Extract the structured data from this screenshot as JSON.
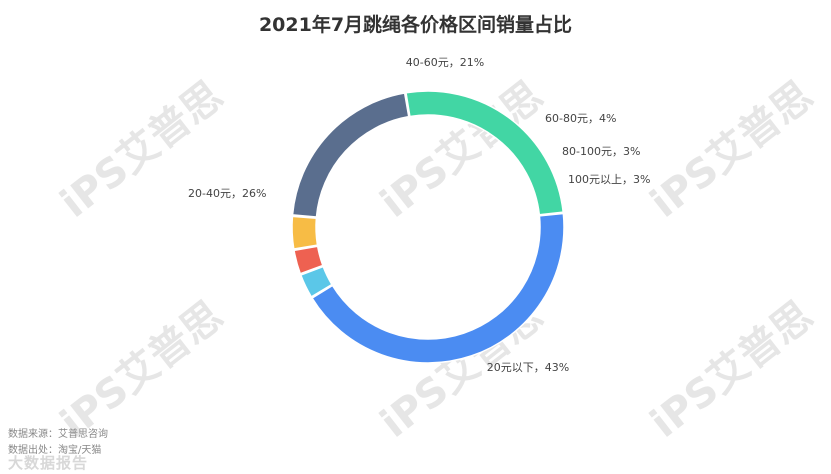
{
  "chart_data": {
    "type": "pie",
    "variant": "donut",
    "title": "2021年7月跳绳各价格区间销量占比",
    "slices": [
      {
        "label": "20元以下",
        "value": 43,
        "display": "20元以下，43%",
        "color": "#4b8cf2"
      },
      {
        "label": "100元以上",
        "value": 3,
        "display": "100元以上，3%",
        "color": "#5bc7e8"
      },
      {
        "label": "80-100元",
        "value": 3,
        "display": "80-100元，3%",
        "color": "#ee6151"
      },
      {
        "label": "60-80元",
        "value": 4,
        "display": "60-80元，4%",
        "color": "#f7bc45"
      },
      {
        "label": "40-60元",
        "value": 21,
        "display": "40-60元，21%",
        "color": "#5a6e8e"
      },
      {
        "label": "20-40元",
        "value": 26,
        "display": "20-40元，26%",
        "color": "#42d6a4"
      }
    ],
    "unit": "%",
    "legend": "none"
  },
  "footer": {
    "source": "数据来源：艾普思咨询",
    "origin": "数据出处：淘宝/天猫"
  },
  "watermark": {
    "text": "iPS艾普思",
    "brand": "大数据报告"
  }
}
